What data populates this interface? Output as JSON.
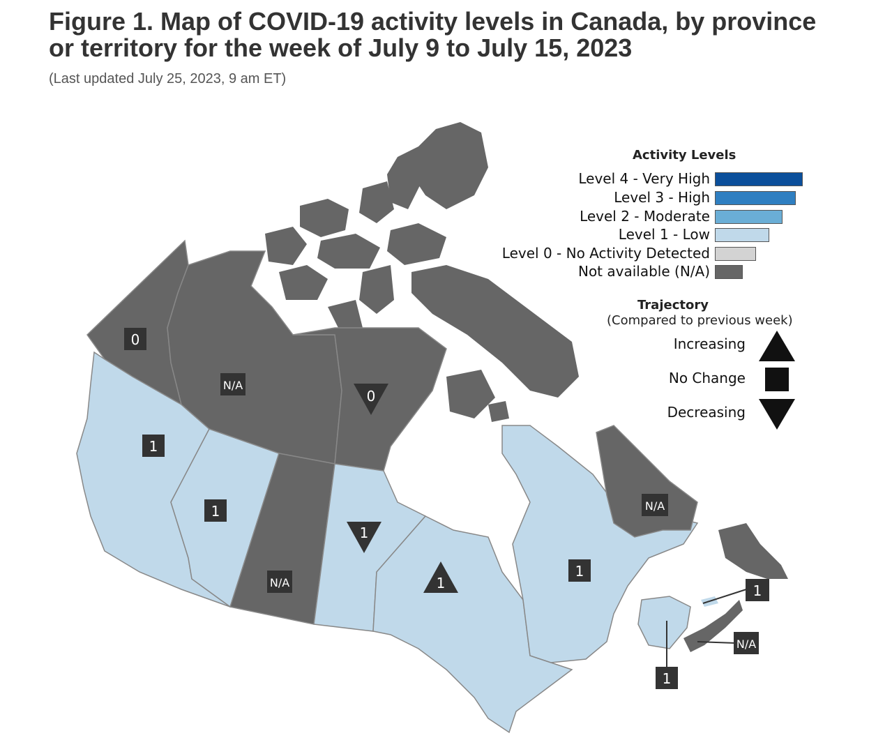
{
  "title": "Figure 1. Map of COVID-19 activity levels in Canada, by province or territory for the week of July 9 to July 15, 2023",
  "subtitle": "(Last updated July 25, 2023, 9 am ET)",
  "colors": {
    "level4": "#0b4f9b",
    "level3": "#2f7fc1",
    "level2": "#6aaed6",
    "level1": "#c0d9ea",
    "level0": "#d3d3d3",
    "na": "#666666",
    "label_bg": "#333333",
    "border": "#888888"
  },
  "legend": {
    "title": "Activity Levels",
    "items": [
      {
        "label": "Level 4 - Very High",
        "color": "#0b4f9b"
      },
      {
        "label": "Level 3 - High",
        "color": "#2f7fc1"
      },
      {
        "label": "Level 2 - Moderate",
        "color": "#6aaed6"
      },
      {
        "label": "Level 1 - Low",
        "color": "#c0d9ea"
      },
      {
        "label": "Level 0 - No Activity Detected",
        "color": "#d3d3d3"
      },
      {
        "label": "Not available (N/A)",
        "color": "#666666"
      }
    ]
  },
  "trajectory": {
    "title": "Trajectory",
    "subtitle": "(Compared to previous week)",
    "items": [
      {
        "label": "Increasing",
        "icon": "triangle-up-icon"
      },
      {
        "label": "No Change",
        "icon": "square-icon"
      },
      {
        "label": "Decreasing",
        "icon": "triangle-down-icon"
      }
    ]
  },
  "regions": [
    {
      "name": "yukon",
      "level": "0",
      "trajectory": "none"
    },
    {
      "name": "northwest-territories",
      "level": "N/A",
      "trajectory": "none"
    },
    {
      "name": "nunavut",
      "level": "0",
      "trajectory": "decreasing"
    },
    {
      "name": "british-columbia",
      "level": "1",
      "trajectory": "none"
    },
    {
      "name": "alberta",
      "level": "1",
      "trajectory": "none"
    },
    {
      "name": "saskatchewan",
      "level": "N/A",
      "trajectory": "none"
    },
    {
      "name": "manitoba",
      "level": "1",
      "trajectory": "decreasing"
    },
    {
      "name": "ontario",
      "level": "1",
      "trajectory": "increasing"
    },
    {
      "name": "quebec",
      "level": "1",
      "trajectory": "none"
    },
    {
      "name": "newfoundland-and-labrador",
      "level": "N/A",
      "trajectory": "none"
    },
    {
      "name": "prince-edward-island",
      "level": "1",
      "trajectory": "none"
    },
    {
      "name": "nova-scotia",
      "level": "N/A",
      "trajectory": "none"
    },
    {
      "name": "new-brunswick",
      "level": "1",
      "trajectory": "none"
    }
  ]
}
